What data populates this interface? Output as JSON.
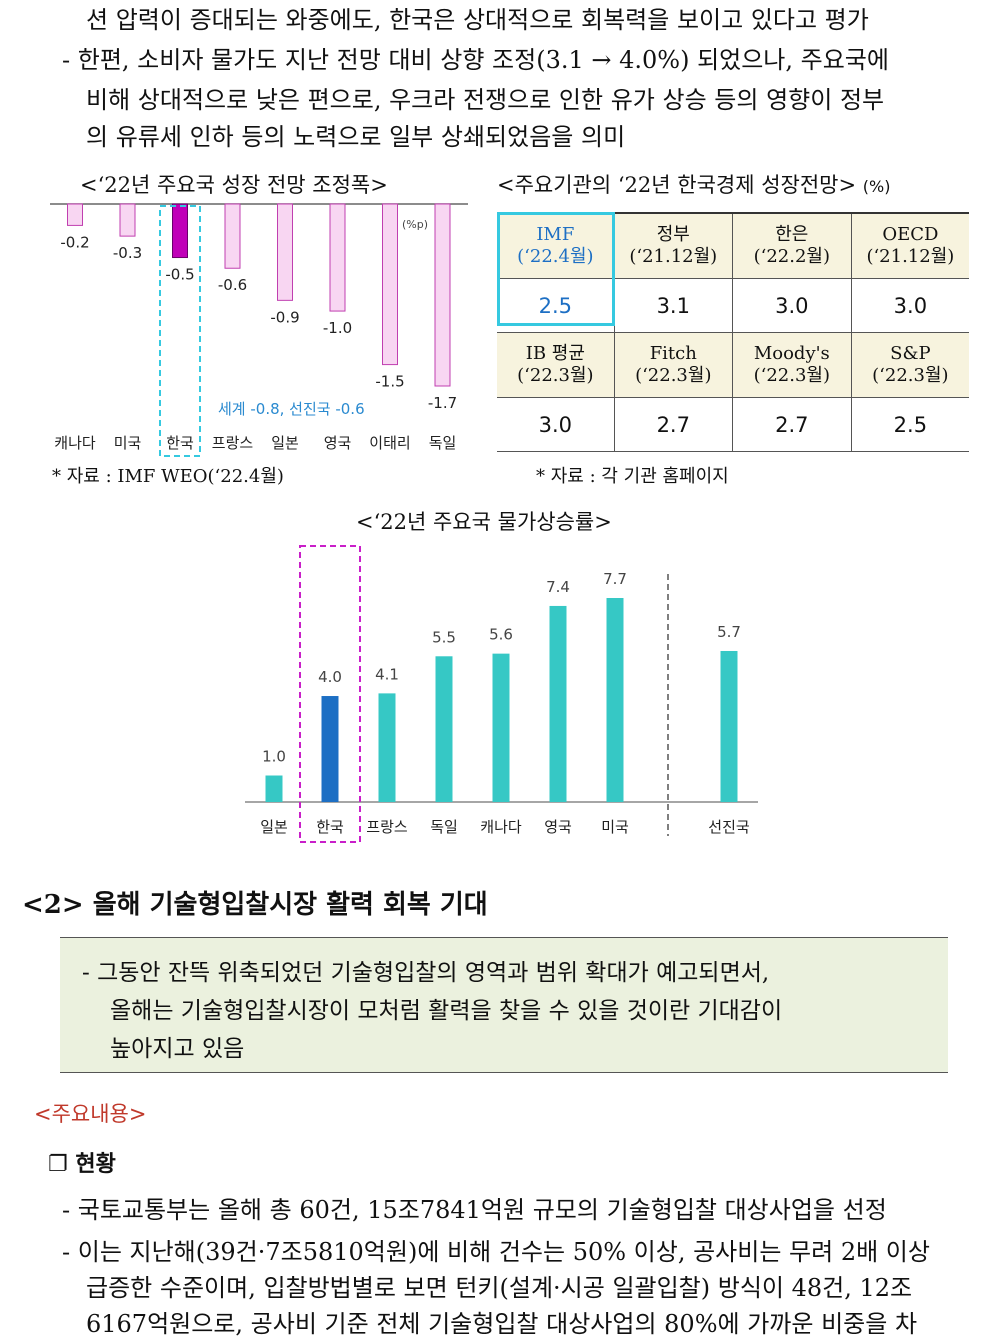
{
  "intro": {
    "line1": "션 압력이 증대되는 와중에도, 한국은 상대적으로 회복력을 보이고 있다고 평가",
    "bullet": "- 한편, 소비자 물가도 지난 전망 대비 상향 조정(3.1 → 4.0%) 되었으나, 주요국에",
    "line3": "비해 상대적으로 낮은 편으로, 우크라 전쟁으로 인한 유가 상승 등의 영향이 정부",
    "line4": "의 유류세 인하 등의 노력으로 일부 상쇄되었음을 의미"
  },
  "left_chart_title": "<‘22년 주요국 성장 전망 조정폭>",
  "right_table_title": "<주요기관의 ‘22년 한국경제 성장전망>",
  "right_table_unit": "(%)",
  "growth_chart_note": "세계 -0.8, 선진국 -0.6",
  "source_left": "* 자료 : IMF WEO(‘22.4월)",
  "source_right": "* 자료 : 각 기관 홈페이지",
  "forecast_table": {
    "row1_headers": [
      {
        "name": "IMF",
        "date": "(‘22.4월)"
      },
      {
        "name": "정부",
        "date": "(‘21.12월)"
      },
      {
        "name": "한은",
        "date": "(‘22.2월)"
      },
      {
        "name": "OECD",
        "date": "(‘21.12월)"
      }
    ],
    "row1_values": [
      "2.5",
      "3.1",
      "3.0",
      "3.0"
    ],
    "row2_headers": [
      {
        "name": "IB 평균",
        "date": "(‘22.3월)"
      },
      {
        "name": "Fitch",
        "date": "(‘22.3월)"
      },
      {
        "name": "Moody's",
        "date": "(‘22.3월)"
      },
      {
        "name": "S&P",
        "date": "(‘22.3월)"
      }
    ],
    "row2_values": [
      "3.0",
      "2.7",
      "2.7",
      "2.5"
    ]
  },
  "inflation_chart_title": "<‘22년 주요국 물가상승률>",
  "section": {
    "heading": "<2> 올해 기술형입찰시장 활력 회복 기대",
    "box_lines": [
      "- 그동안 잔뜩 위축되었던 기술형입찰의 영역과 범위 확대가 예고되면서,",
      "올해는 기술형입찰시장이 모처럼 활력을 찾을 수 있을 것이란 기대감이",
      "높아지고 있음"
    ],
    "key_label": "<주요내용>",
    "status_label": "❐ 현황",
    "bullet1": "- 국토교통부는 올해 총 60건, 15조7841억원 규모의 기술형입찰 대상사업을 선정",
    "bullet2_l1": "- 이는 지난해(39건·7조5810억원)에 비해 건수는 50% 이상, 공사비는 무려 2배 이상",
    "bullet2_l2": "급증한 수준이며, 입찰방법별로 보면 턴키(설계·시공 일괄입찰) 방식이 48건, 12조",
    "bullet2_l3": "6167억원으로, 공사비 기준 전체 기술형입찰 대상사업의 80%에 가까운 비중을 차"
  },
  "colors": {
    "growth_bar": "#f8d6f2",
    "growth_bar_border": "#c03fb0",
    "growth_highlight": "#c000b8",
    "korea_box_cyan": "#35c9e0",
    "inflation_bar": "#36c8c5",
    "inflation_korea": "#1d6fc4",
    "korea_box_magenta": "#c91fc9",
    "note_blue": "#2a8ad0",
    "key_label_red": "#c0392b"
  },
  "chart_data": [
    {
      "type": "bar",
      "title": "<‘22년 주요국 성장 전망 조정폭>",
      "unit": "(%p)",
      "categories": [
        "캐나다",
        "미국",
        "한국",
        "프랑스",
        "일본",
        "영국",
        "이태리",
        "독일"
      ],
      "values": [
        -0.2,
        -0.3,
        -0.5,
        -0.6,
        -0.9,
        -1.0,
        -1.5,
        -1.7
      ],
      "labels": [
        "-0.2",
        "-0.3",
        "-0.5",
        "-0.6",
        "-0.9",
        "-1.0",
        "-1.5",
        "-1.7"
      ],
      "highlight": "한국",
      "ylim": [
        -1.7,
        0
      ]
    },
    {
      "type": "bar",
      "title": "<‘22년 주요국 물가상승률>",
      "categories": [
        "일본",
        "한국",
        "프랑스",
        "독일",
        "캐나다",
        "영국",
        "미국",
        "선진국"
      ],
      "values": [
        1.0,
        4.0,
        4.1,
        5.5,
        5.6,
        7.4,
        7.7,
        5.7
      ],
      "labels": [
        "1.0",
        "4.0",
        "4.1",
        "5.5",
        "5.6",
        "7.4",
        "7.7",
        "5.7"
      ],
      "highlight": "한국",
      "ylim": [
        0,
        7.7
      ]
    }
  ]
}
